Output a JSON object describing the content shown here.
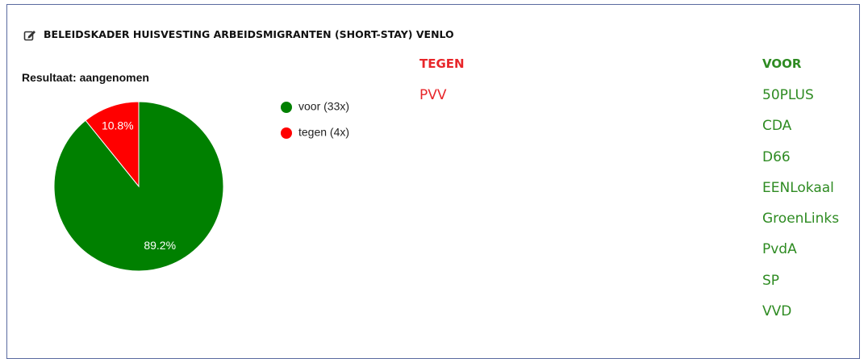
{
  "title": "BELEIDSKADER HUISVESTING ARBEIDSMIGRANTEN (SHORT-STAY) VENLO",
  "result": "Resultaat: aangenomen",
  "chart_data": {
    "type": "pie",
    "categories": [
      "voor (33x)",
      "tegen (4x)"
    ],
    "values": [
      89.2,
      10.8
    ],
    "value_labels": [
      "89.2%",
      "10.8%"
    ],
    "colors": [
      "#008000",
      "#ff0000"
    ],
    "legend": "right"
  },
  "tegen": {
    "heading": "TEGEN",
    "parties": [
      "PVV"
    ]
  },
  "voor": {
    "heading": "VOOR",
    "parties": [
      "50PLUS",
      "CDA",
      "D66",
      "EENLokaal",
      "GroenLinks",
      "PvdA",
      "SP",
      "VVD"
    ]
  }
}
